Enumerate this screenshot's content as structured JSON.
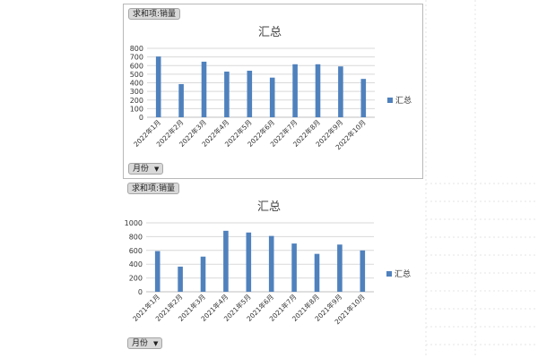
{
  "colors": {
    "bar": "#4f81bd",
    "grid": "#d9d9d9",
    "axis": "#bfbfbf",
    "text": "#333333"
  },
  "charts": [
    {
      "value_button": "求和项:销量",
      "category_button": "月份",
      "title": "汇总",
      "legend": "汇总"
    },
    {
      "value_button": "求和项:销量",
      "category_button": "月份",
      "title": "汇总",
      "legend": "汇总"
    }
  ],
  "chart_data": [
    {
      "type": "bar",
      "title": "汇总",
      "categories": [
        "2022年1月",
        "2022年2月",
        "2022年3月",
        "2022年4月",
        "2022年5月",
        "2022年6月",
        "2022年7月",
        "2022年8月",
        "2022年9月",
        "2022年10月"
      ],
      "series": [
        {
          "name": "汇总",
          "values": [
            705,
            385,
            645,
            530,
            540,
            460,
            615,
            615,
            590,
            445
          ]
        }
      ],
      "ylim": [
        0,
        800
      ],
      "yticks": [
        0,
        100,
        200,
        300,
        400,
        500,
        600,
        700,
        800
      ],
      "grid": true,
      "legend_position": "right"
    },
    {
      "type": "bar",
      "title": "汇总",
      "categories": [
        "2021年1月",
        "2021年2月",
        "2021年3月",
        "2021年4月",
        "2021年5月",
        "2021年6月",
        "2021年7月",
        "2021年8月",
        "2021年9月",
        "2021年10月"
      ],
      "series": [
        {
          "name": "汇总",
          "values": [
            590,
            365,
            510,
            885,
            860,
            810,
            700,
            550,
            685,
            600
          ]
        }
      ],
      "ylim": [
        0,
        1000
      ],
      "yticks": [
        0,
        200,
        400,
        600,
        800,
        1000
      ],
      "grid": true,
      "legend_position": "right"
    }
  ]
}
